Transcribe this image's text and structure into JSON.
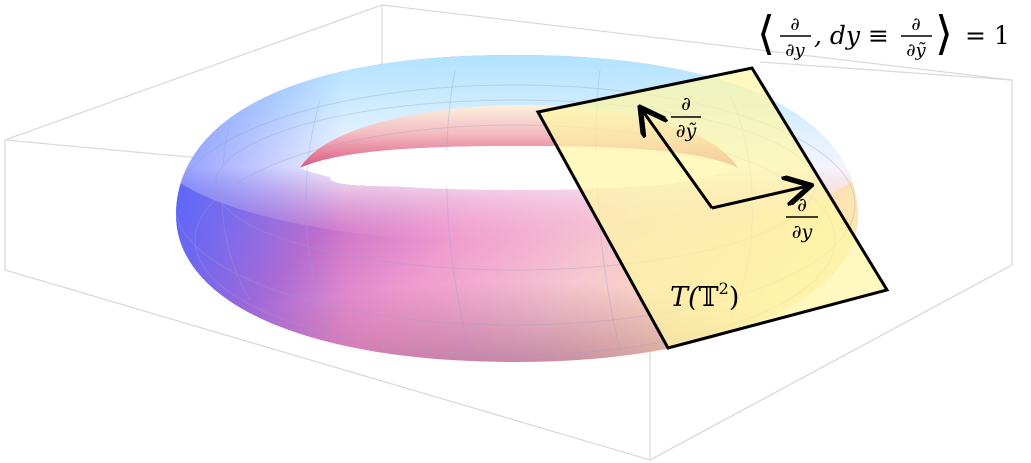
{
  "formula": {
    "lhs_angle_open": "⟨",
    "frac1_num": "∂",
    "frac1_den": "∂y",
    "middle": ", dy ≡",
    "frac2_num": "∂",
    "frac2_den": "∂ỹ",
    "rhs_angle_close": "⟩",
    "equals": "= 1"
  },
  "plane": {
    "label_T": "T(",
    "label_torus": "𝕋",
    "label_exp": "2",
    "label_close": ")",
    "color": "#fff6a6"
  },
  "vectors": {
    "vertical": {
      "num": "∂",
      "den": "∂ỹ"
    },
    "horizontal": {
      "num": "∂",
      "den": "∂y"
    }
  },
  "colors": {
    "box_edges": "#d9d9d9",
    "torus_blue": "#6f8cff",
    "torus_magenta": "#c44a9a",
    "torus_cyan": "#b9e6ff",
    "torus_cream": "#fff1d6"
  }
}
